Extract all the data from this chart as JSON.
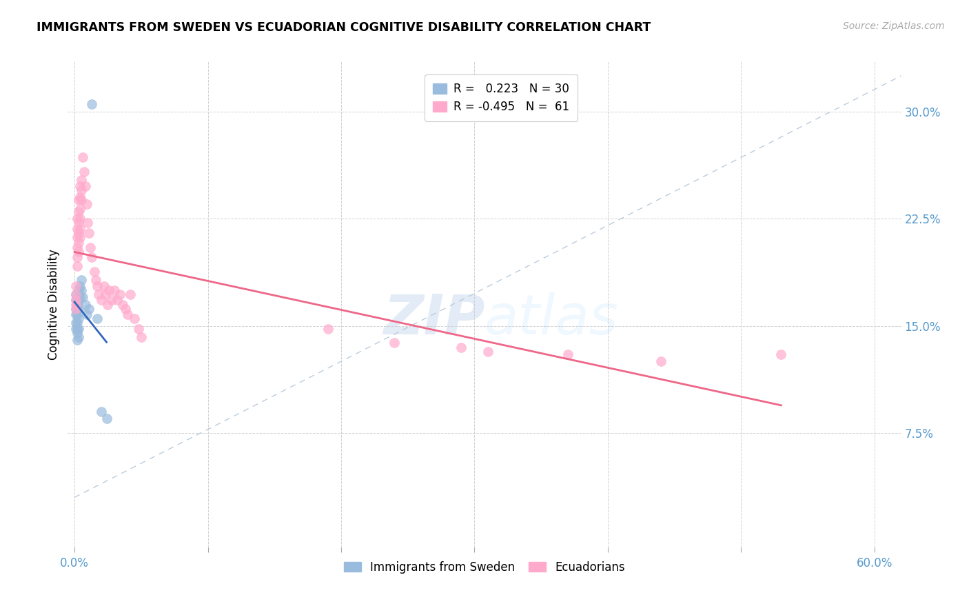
{
  "title": "IMMIGRANTS FROM SWEDEN VS ECUADORIAN COGNITIVE DISABILITY CORRELATION CHART",
  "source": "Source: ZipAtlas.com",
  "ylabel": "Cognitive Disability",
  "ytick_labels": [
    "7.5%",
    "15.0%",
    "22.5%",
    "30.0%"
  ],
  "ytick_values": [
    0.075,
    0.15,
    0.225,
    0.3
  ],
  "xlim": [
    -0.005,
    0.62
  ],
  "ylim": [
    -0.005,
    0.335
  ],
  "legend_entry1": "R =   0.223   N = 30",
  "legend_entry2": "R = -0.495   N =  61",
  "legend_label1": "Immigrants from Sweden",
  "legend_label2": "Ecuadorians",
  "sweden_color": "#99BBDD",
  "ecuador_color": "#FFAACC",
  "sweden_trendline_color": "#3366BB",
  "ecuador_trendline_color": "#EE6688",
  "dashed_line_color": "#BBCCDD",
  "watermark_zip": "ZIP",
  "watermark_atlas": "atlas",
  "sweden_R": 0.223,
  "sweden_N": 30,
  "ecuador_R": -0.495,
  "ecuador_N": 61,
  "sweden_points": [
    [
      0.001,
      0.172
    ],
    [
      0.001,
      0.168
    ],
    [
      0.001,
      0.162
    ],
    [
      0.001,
      0.158
    ],
    [
      0.001,
      0.152
    ],
    [
      0.001,
      0.148
    ],
    [
      0.002,
      0.165
    ],
    [
      0.002,
      0.158
    ],
    [
      0.002,
      0.152
    ],
    [
      0.002,
      0.148
    ],
    [
      0.002,
      0.145
    ],
    [
      0.002,
      0.14
    ],
    [
      0.003,
      0.175
    ],
    [
      0.003,
      0.168
    ],
    [
      0.003,
      0.162
    ],
    [
      0.003,
      0.155
    ],
    [
      0.003,
      0.148
    ],
    [
      0.003,
      0.142
    ],
    [
      0.004,
      0.178
    ],
    [
      0.004,
      0.17
    ],
    [
      0.005,
      0.182
    ],
    [
      0.005,
      0.175
    ],
    [
      0.006,
      0.17
    ],
    [
      0.008,
      0.165
    ],
    [
      0.009,
      0.158
    ],
    [
      0.011,
      0.162
    ],
    [
      0.013,
      0.305
    ],
    [
      0.017,
      0.155
    ],
    [
      0.02,
      0.09
    ],
    [
      0.024,
      0.085
    ]
  ],
  "ecuador_points": [
    [
      0.001,
      0.178
    ],
    [
      0.001,
      0.172
    ],
    [
      0.001,
      0.168
    ],
    [
      0.001,
      0.165
    ],
    [
      0.001,
      0.162
    ],
    [
      0.002,
      0.225
    ],
    [
      0.002,
      0.218
    ],
    [
      0.002,
      0.212
    ],
    [
      0.002,
      0.205
    ],
    [
      0.002,
      0.198
    ],
    [
      0.002,
      0.192
    ],
    [
      0.003,
      0.238
    ],
    [
      0.003,
      0.23
    ],
    [
      0.003,
      0.222
    ],
    [
      0.003,
      0.215
    ],
    [
      0.003,
      0.208
    ],
    [
      0.003,
      0.202
    ],
    [
      0.004,
      0.248
    ],
    [
      0.004,
      0.24
    ],
    [
      0.004,
      0.232
    ],
    [
      0.004,
      0.225
    ],
    [
      0.004,
      0.218
    ],
    [
      0.004,
      0.212
    ],
    [
      0.005,
      0.252
    ],
    [
      0.005,
      0.245
    ],
    [
      0.005,
      0.238
    ],
    [
      0.006,
      0.268
    ],
    [
      0.007,
      0.258
    ],
    [
      0.008,
      0.248
    ],
    [
      0.009,
      0.235
    ],
    [
      0.01,
      0.222
    ],
    [
      0.011,
      0.215
    ],
    [
      0.012,
      0.205
    ],
    [
      0.013,
      0.198
    ],
    [
      0.015,
      0.188
    ],
    [
      0.016,
      0.182
    ],
    [
      0.017,
      0.178
    ],
    [
      0.018,
      0.172
    ],
    [
      0.02,
      0.168
    ],
    [
      0.022,
      0.178
    ],
    [
      0.023,
      0.172
    ],
    [
      0.025,
      0.165
    ],
    [
      0.026,
      0.175
    ],
    [
      0.028,
      0.168
    ],
    [
      0.03,
      0.175
    ],
    [
      0.032,
      0.168
    ],
    [
      0.034,
      0.172
    ],
    [
      0.036,
      0.165
    ],
    [
      0.038,
      0.162
    ],
    [
      0.04,
      0.158
    ],
    [
      0.042,
      0.172
    ],
    [
      0.045,
      0.155
    ],
    [
      0.048,
      0.148
    ],
    [
      0.05,
      0.142
    ],
    [
      0.19,
      0.148
    ],
    [
      0.24,
      0.138
    ],
    [
      0.29,
      0.135
    ],
    [
      0.31,
      0.132
    ],
    [
      0.37,
      0.13
    ],
    [
      0.44,
      0.125
    ],
    [
      0.53,
      0.13
    ]
  ]
}
